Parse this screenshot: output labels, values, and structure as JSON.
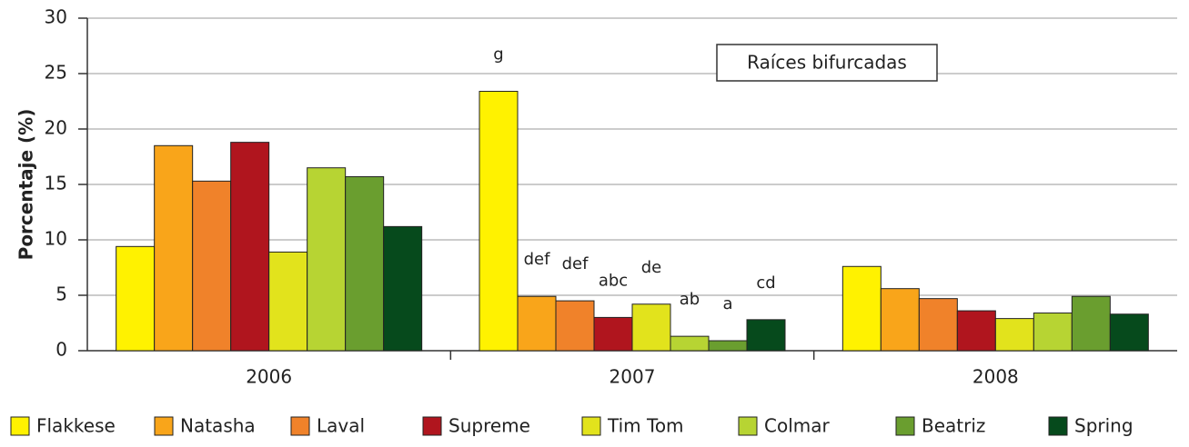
{
  "chart_data": {
    "type": "bar",
    "title": "Raíces bifurcadas",
    "y_label": "Porcentaje (%)",
    "categories": [
      "2006",
      "2007",
      "2008"
    ],
    "ylim": [
      0,
      30
    ],
    "yticks": [
      0,
      5,
      10,
      15,
      20,
      25,
      30
    ],
    "grid": true,
    "series": [
      {
        "name": "Flakkese",
        "color": "#fff200",
        "values": [
          9.4,
          23.4,
          7.6
        ],
        "significance": [
          null,
          "g",
          null
        ]
      },
      {
        "name": "Natasha",
        "color": "#f9a51a",
        "values": [
          18.5,
          4.9,
          5.6
        ],
        "significance": [
          null,
          "def",
          null
        ]
      },
      {
        "name": "Laval",
        "color": "#f0822a",
        "values": [
          15.3,
          4.5,
          4.7
        ],
        "significance": [
          null,
          "def",
          null
        ]
      },
      {
        "name": "Supreme",
        "color": "#b0151e",
        "values": [
          18.8,
          3.0,
          3.6
        ],
        "significance": [
          null,
          "abc",
          null
        ]
      },
      {
        "name": "Tim Tom",
        "color": "#e2e31c",
        "values": [
          8.9,
          4.2,
          2.9
        ],
        "significance": [
          null,
          "de",
          null
        ]
      },
      {
        "name": "Colmar",
        "color": "#b7d433",
        "values": [
          16.5,
          1.3,
          3.4
        ],
        "significance": [
          null,
          "ab",
          null
        ]
      },
      {
        "name": "Beatriz",
        "color": "#6a9e2f",
        "values": [
          15.7,
          0.9,
          4.9
        ],
        "significance": [
          null,
          "a",
          null
        ]
      },
      {
        "name": "Spring",
        "color": "#064a1c",
        "values": [
          11.2,
          2.8,
          3.3
        ],
        "significance": [
          null,
          "cd",
          null
        ]
      }
    ]
  }
}
